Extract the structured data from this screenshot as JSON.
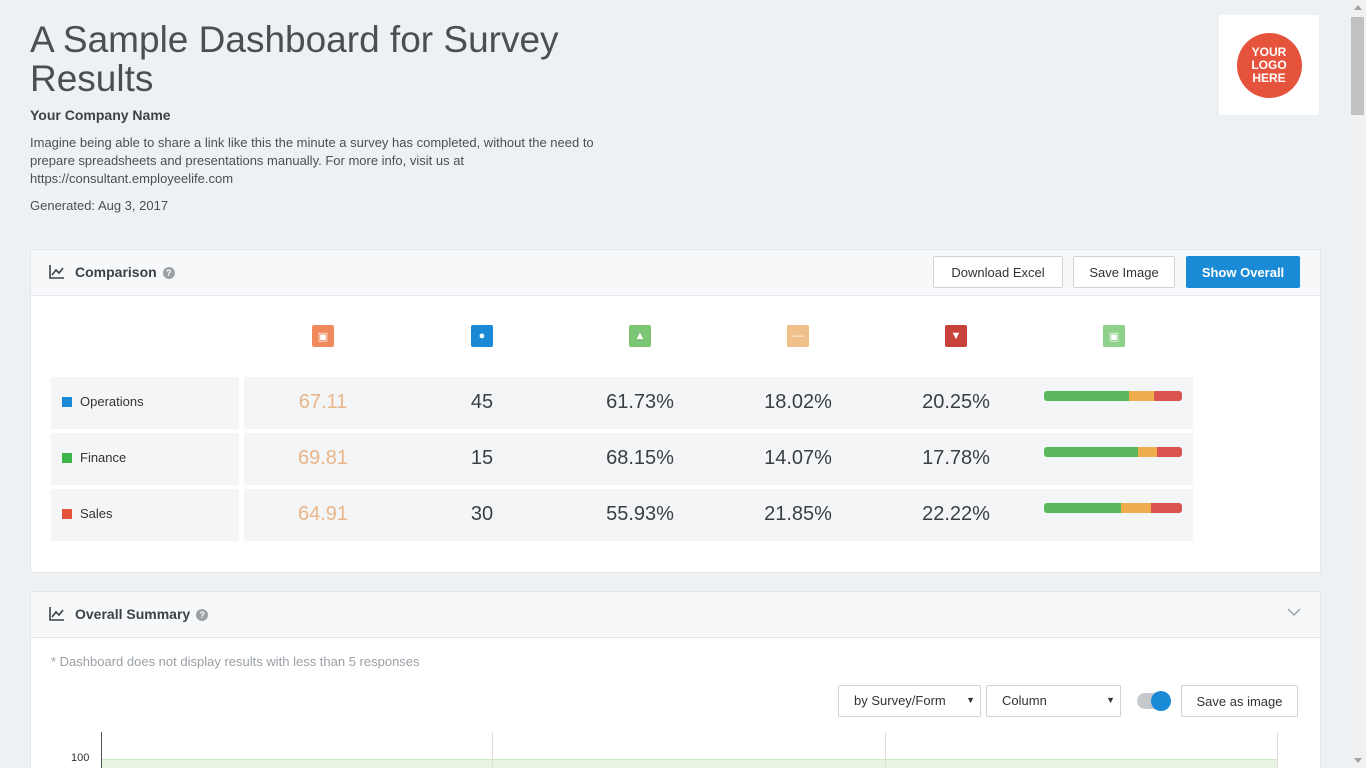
{
  "header": {
    "title": "A Sample Dashboard for Survey Results",
    "company": "Your Company Name",
    "description": "Imagine being able to share a link like this the minute a survey has completed, without the need to prepare spreadsheets and presentations manually. For more info, visit us at https://consultant.employeelife.com",
    "generated": "Generated: Aug 3, 2017",
    "logo_text": "YOUR\nLOGO\nHERE"
  },
  "comparison": {
    "title": "Comparison",
    "help": "?",
    "buttons": {
      "download_excel": "Download Excel",
      "save_image": "Save Image",
      "show_overall": "Show Overall"
    },
    "column_icons": [
      "score-icon",
      "respondents-icon",
      "thumbs-up-icon",
      "neutral-icon",
      "thumbs-down-icon",
      "distribution-icon"
    ],
    "column_colors": [
      "#f08a5d",
      "#1a8ad6",
      "#7cc576",
      "#f0c08a",
      "#c9413b",
      "#8fd08a"
    ],
    "rows": [
      {
        "label": "Operations",
        "color": "#1a8ad6",
        "score": "67.11",
        "count": "45",
        "positive": "61.73%",
        "neutral": "18.02%",
        "negative": "20.25%",
        "dist": [
          61.73,
          18.02,
          20.25
        ]
      },
      {
        "label": "Finance",
        "color": "#3bb54a",
        "score": "69.81",
        "count": "15",
        "positive": "68.15%",
        "neutral": "14.07%",
        "negative": "17.78%",
        "dist": [
          68.15,
          14.07,
          17.78
        ]
      },
      {
        "label": "Sales",
        "color": "#e5533d",
        "score": "64.91",
        "count": "30",
        "positive": "55.93%",
        "neutral": "21.85%",
        "negative": "22.22%",
        "dist": [
          55.93,
          21.85,
          22.22
        ]
      }
    ]
  },
  "summary": {
    "title": "Overall Summary",
    "help": "?",
    "note": "* Dashboard does not display results with less than 5 responses",
    "group_select": "by Survey/Form",
    "chart_type_select": "Column",
    "toggle_on": true,
    "save_button": "Save as image",
    "y_tick": "100"
  }
}
